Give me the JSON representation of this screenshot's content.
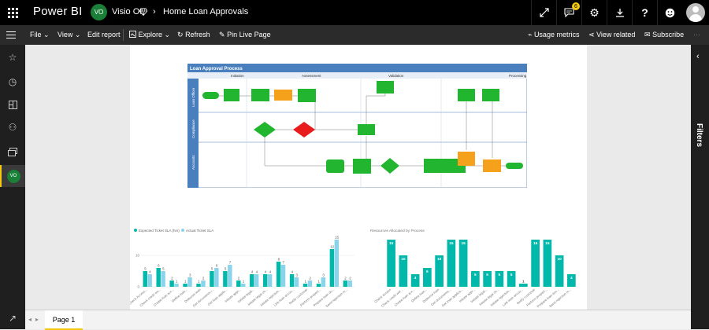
{
  "app": {
    "brand": "Power BI",
    "workspace_initials": "VO",
    "workspace_name": "Visio OI",
    "report_title": "Home Loan Approvals",
    "notification_count": "6"
  },
  "toolbar": {
    "file": "File",
    "view": "View",
    "edit_report": "Edit report",
    "explore": "Explore",
    "refresh": "Refresh",
    "pin_live_page": "Pin Live Page",
    "usage_metrics": "Usage metrics",
    "view_related": "View related",
    "subscribe": "Subscribe"
  },
  "leftrail": {
    "user_initials": "VO"
  },
  "rightrail": {
    "filters": "Filters"
  },
  "pages": {
    "active": "Page 1"
  },
  "visio": {
    "title": "Loan Approval Process",
    "phases": [
      "Initiation",
      "Assessment",
      "Validation",
      "Processing"
    ],
    "lanes": [
      "Loan Officer",
      "Compliance",
      "Accounts"
    ]
  },
  "chart_data": [
    {
      "type": "bar",
      "legend": [
        "Expected Ticket SLA (hrs)",
        "Actual Ticket SLA"
      ],
      "legend_position": "top-left",
      "categories": [
        "Check Access...",
        "Check credit wo...",
        "Create loan acc...",
        "Define loan...",
        "Disburse loan",
        "Get documents r...",
        "Get loan applic...",
        "Initiate appr...",
        "Initiate legal...",
        "Initiate legal ch...",
        "Initiate rejection...",
        "Link loan accou...",
        "Notify customer",
        "Perform propert...",
        "Prepare loan do...",
        "Send rejection m..."
      ],
      "series": [
        {
          "name": "Expected Ticket SLA (hrs)",
          "values": [
            5,
            6,
            2,
            1,
            1,
            5,
            5,
            2,
            4,
            4,
            8,
            4,
            1,
            1,
            12,
            2
          ]
        },
        {
          "name": "Actual Ticket SLA",
          "values": [
            4,
            5,
            1,
            3,
            2,
            6,
            7,
            1,
            4,
            4,
            7,
            3,
            2,
            3,
            15,
            2
          ]
        }
      ],
      "ylim": [
        0,
        15
      ],
      "yticks": [
        0,
        10
      ]
    },
    {
      "type": "bar",
      "title": "Resources Allocated by Process",
      "categories": [
        "Check access",
        "Check credit wor...",
        "Create loan acc...",
        "Define loan...",
        "Disburse loan",
        "Get documents...",
        "Get loan applica...",
        "Initiate appr...",
        "Initiate legal...",
        "Initiate legal ch...",
        "Initiate rejection...",
        "Link loan accou...",
        "Notify customer",
        "Perform propert...",
        "Prepare loan doc...",
        "Send rejection m..."
      ],
      "values": [
        15,
        10,
        4,
        6,
        10,
        15,
        15,
        5,
        5,
        5,
        5,
        1,
        15,
        15,
        10,
        4
      ],
      "ylim": [
        0,
        15
      ]
    }
  ]
}
